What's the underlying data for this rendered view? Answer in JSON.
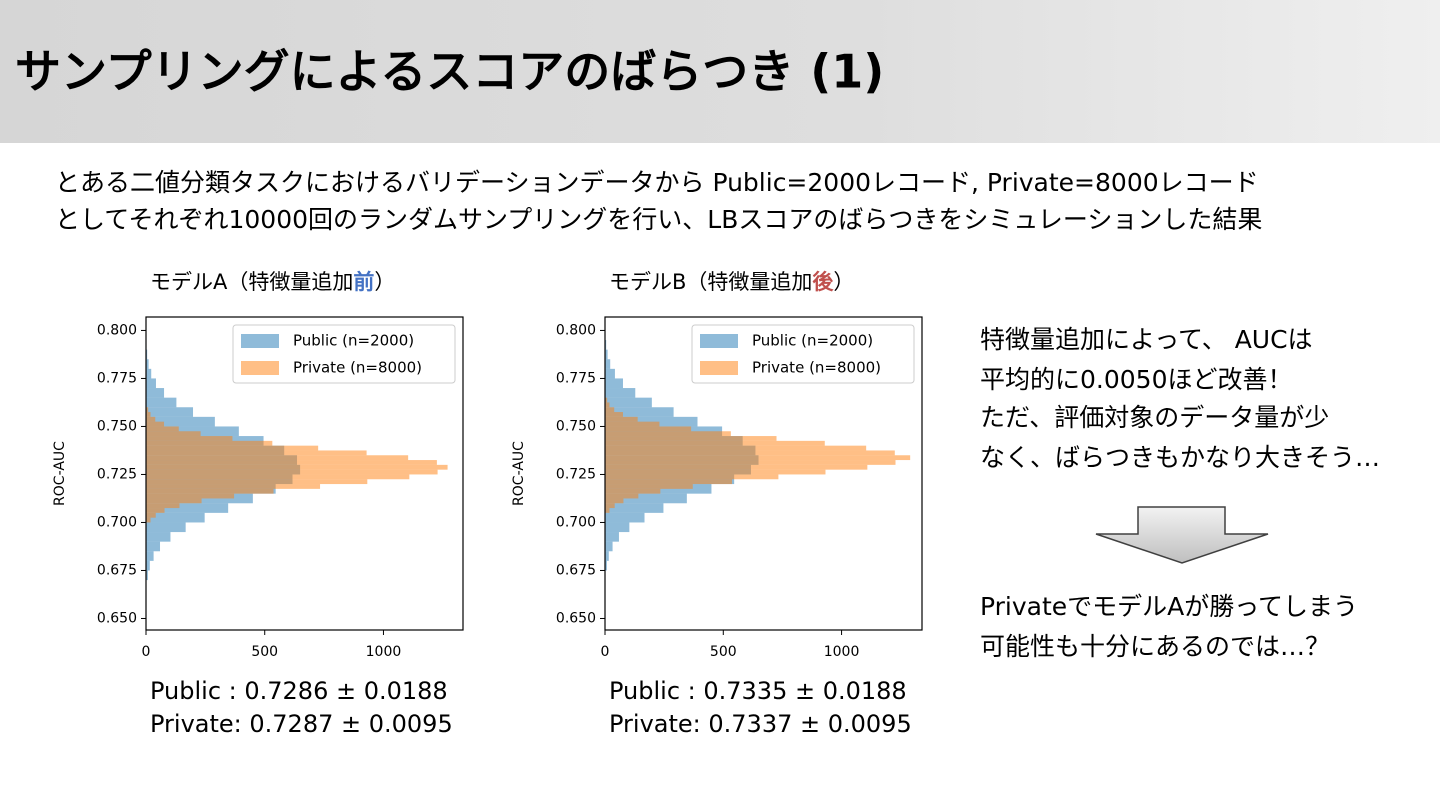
{
  "header": {
    "title": "サンプリングによるスコアのばらつき (1)"
  },
  "intro": [
    "とある二値分類タスクにおけるバリデーションデータから Public=2000レコード, Private=8000レコード",
    "としてそれぞれ10000回のランダムサンプリングを行い、LBスコアのばらつきをシミュレーションした結果"
  ],
  "chart_data": [
    {
      "type": "histogram",
      "orientation": "horizontal",
      "title": "モデルA（特徴量追加",
      "title_emphasis": "前",
      "title_suffix": "）",
      "title_emphasis_color": "#4472c4",
      "ylabel": "ROC-AUC",
      "ylim": [
        0.644,
        0.807
      ],
      "yticks": [
        {
          "value": 0.65,
          "label": "0.650"
        },
        {
          "value": 0.675,
          "label": "0.675"
        },
        {
          "value": 0.7,
          "label": "0.700"
        },
        {
          "value": 0.725,
          "label": "0.725"
        },
        {
          "value": 0.75,
          "label": "0.750"
        },
        {
          "value": 0.775,
          "label": "0.775"
        },
        {
          "value": 0.8,
          "label": "0.800"
        }
      ],
      "xlim": [
        0,
        1335
      ],
      "xticks": [
        0,
        500,
        1000
      ],
      "legend": "upper right",
      "alpha": 0.5,
      "series": [
        {
          "name": "Public (n=2000)",
          "color": "#1f77b4",
          "bins": [
            0.67,
            0.675,
            0.68,
            0.685,
            0.69,
            0.695,
            0.7,
            0.705,
            0.71,
            0.715,
            0.72,
            0.725,
            0.73,
            0.735,
            0.74,
            0.745,
            0.75,
            0.755,
            0.76,
            0.765,
            0.77,
            0.775,
            0.78,
            0.785,
            0.79
          ],
          "values": [
            8,
            16,
            32,
            59,
            103,
            167,
            247,
            346,
            450,
            546,
            617,
            649,
            636,
            582,
            495,
            391,
            290,
            198,
            128,
            76,
            42,
            22,
            11,
            5
          ]
        },
        {
          "name": "Private (n=8000)",
          "color": "#ff7f0e",
          "bins": [
            0.7,
            0.7025,
            0.705,
            0.7075,
            0.71,
            0.7125,
            0.715,
            0.7175,
            0.72,
            0.7225,
            0.725,
            0.7275,
            0.73,
            0.7325,
            0.735,
            0.7375,
            0.74,
            0.7425,
            0.745,
            0.7475,
            0.75,
            0.7525,
            0.755,
            0.7575,
            0.76
          ],
          "values": [
            19,
            41,
            78,
            141,
            234,
            371,
            537,
            733,
            932,
            1109,
            1228,
            1270,
            1225,
            1104,
            929,
            725,
            532,
            364,
            230,
            138,
            76,
            39,
            19,
            9
          ]
        }
      ],
      "stats": [
        "Public : 0.7286 ± 0.0188",
        "Private: 0.7287 ± 0.0095"
      ]
    },
    {
      "type": "histogram",
      "orientation": "horizontal",
      "title": "モデルB（特徴量追加",
      "title_emphasis": "後",
      "title_suffix": "）",
      "title_emphasis_color": "#c0504d",
      "ylabel": "ROC-AUC",
      "ylim": [
        0.644,
        0.807
      ],
      "yticks": [
        {
          "value": 0.65,
          "label": "0.650"
        },
        {
          "value": 0.675,
          "label": "0.675"
        },
        {
          "value": 0.7,
          "label": "0.700"
        },
        {
          "value": 0.725,
          "label": "0.725"
        },
        {
          "value": 0.75,
          "label": "0.750"
        },
        {
          "value": 0.775,
          "label": "0.775"
        },
        {
          "value": 0.8,
          "label": "0.800"
        }
      ],
      "xlim": [
        0,
        1340
      ],
      "xticks": [
        0,
        500,
        1000
      ],
      "legend": "upper right",
      "alpha": 0.5,
      "series": [
        {
          "name": "Public (n=2000)",
          "color": "#1f77b4",
          "bins": [
            0.675,
            0.68,
            0.685,
            0.69,
            0.695,
            0.7,
            0.705,
            0.71,
            0.715,
            0.72,
            0.725,
            0.73,
            0.735,
            0.74,
            0.745,
            0.75,
            0.755,
            0.76,
            0.765,
            0.77,
            0.775,
            0.78,
            0.785,
            0.79,
            0.795
          ],
          "values": [
            8,
            16,
            32,
            59,
            103,
            167,
            247,
            346,
            450,
            546,
            617,
            649,
            636,
            582,
            495,
            391,
            290,
            198,
            128,
            76,
            42,
            22,
            11,
            5
          ]
        },
        {
          "name": "Private (n=8000)",
          "color": "#ff7f0e",
          "bins": [
            0.705,
            0.7075,
            0.71,
            0.7125,
            0.715,
            0.7175,
            0.72,
            0.7225,
            0.725,
            0.7275,
            0.73,
            0.7325,
            0.735,
            0.7375,
            0.74,
            0.7425,
            0.745,
            0.7475,
            0.75,
            0.7525,
            0.755,
            0.7575,
            0.76,
            0.7625,
            0.765
          ],
          "values": [
            19,
            41,
            78,
            141,
            234,
            371,
            537,
            733,
            932,
            1109,
            1228,
            1290,
            1225,
            1104,
            929,
            725,
            532,
            364,
            230,
            138,
            76,
            39,
            19,
            9
          ]
        }
      ],
      "stats": [
        "Public : 0.7335 ± 0.0188",
        "Private: 0.7337 ± 0.0095"
      ]
    }
  ],
  "notes": {
    "paragraph": [
      "特徴量追加によって、 AUCは",
      "平均的に0.0050ほど改善！",
      "ただ、評価対象のデータ量が少",
      "なく、ばらつきもかなり大きそう…"
    ],
    "conclusion": [
      "PrivateでモデルAが勝ってしまう",
      "可能性も十分にあるのでは…？"
    ]
  }
}
